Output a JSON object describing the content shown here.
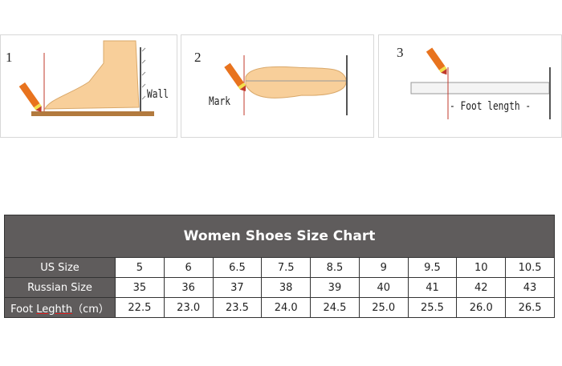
{
  "steps": [
    {
      "number": "1",
      "label": "Wall"
    },
    {
      "number": "2",
      "label": "Mark"
    },
    {
      "number": "3",
      "label": "- Foot length -"
    }
  ],
  "size_chart": {
    "title": "Women Shoes Size Chart",
    "rows": [
      {
        "label": "US Size",
        "values": [
          "5",
          "6",
          "6.5",
          "7.5",
          "8.5",
          "9",
          "9.5",
          "10",
          "10.5"
        ]
      },
      {
        "label": "Russian Size",
        "values": [
          "35",
          "36",
          "37",
          "38",
          "39",
          "40",
          "41",
          "42",
          "43"
        ]
      },
      {
        "label_prefix": "Foot ",
        "label_underlined": "Leghth",
        "label_suffix": "（cm）",
        "values": [
          "22.5",
          "23.0",
          "23.5",
          "24.0",
          "24.5",
          "25.0",
          "25.5",
          "26.0",
          "26.5"
        ]
      }
    ]
  },
  "colors": {
    "header": "#5f5c5c",
    "foot": "#f8cf9a",
    "pencil": "#e8731e",
    "mark_line": "#c0392b"
  }
}
